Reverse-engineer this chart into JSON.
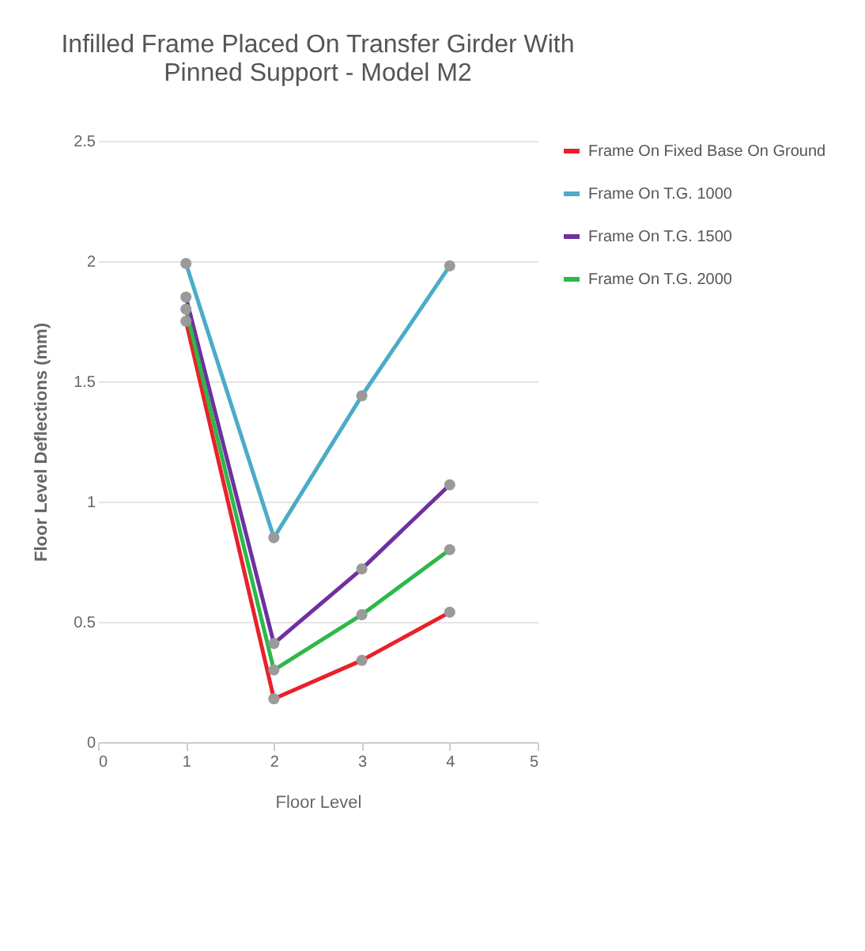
{
  "chart_data": {
    "type": "line",
    "title": [
      "Infilled Frame Placed On Transfer Girder With",
      "Pinned Support - Model M2"
    ],
    "xlabel": "Floor Level",
    "ylabel": "Floor Level Deflections (mm)",
    "x": [
      1,
      2,
      3,
      4
    ],
    "series": [
      {
        "name": "Frame On Fixed Base On Ground",
        "color": "#e8212b",
        "values": [
          1.75,
          0.18,
          0.34,
          0.54
        ]
      },
      {
        "name": "Frame On T.G. 1000",
        "color": "#4bacc6",
        "values": [
          1.99,
          0.85,
          1.44,
          1.98
        ]
      },
      {
        "name": "Frame On T.G. 1500",
        "color": "#7030a0",
        "values": [
          1.85,
          0.41,
          0.72,
          1.07
        ]
      },
      {
        "name": "Frame On T.G. 2000",
        "color": "#2db84b",
        "values": [
          1.8,
          0.3,
          0.53,
          0.8
        ]
      }
    ],
    "xlim": [
      0,
      5
    ],
    "xticks": [
      0,
      1,
      2,
      3,
      4,
      5
    ],
    "ylim": [
      0,
      2.5
    ],
    "yticks": [
      0,
      0.5,
      1,
      1.5,
      2,
      2.5
    ],
    "grid": "y",
    "legend": "right",
    "marker": "circle",
    "line_style": "solid"
  }
}
